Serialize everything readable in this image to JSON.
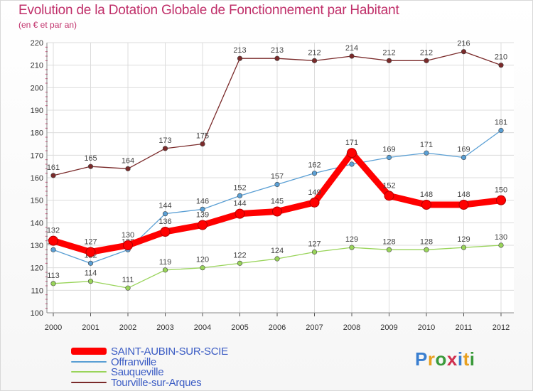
{
  "chart_data": {
    "type": "line",
    "title": "Evolution de la Dotation Globale de Fonctionnement par Habitant",
    "subtitle": "(en € et par an)",
    "categories": [
      "2000",
      "2001",
      "2002",
      "2003",
      "2004",
      "2005",
      "2006",
      "2007",
      "2008",
      "2009",
      "2010",
      "2011",
      "2012"
    ],
    "ylim": [
      100,
      220
    ],
    "yticks": [
      100,
      110,
      120,
      130,
      140,
      150,
      160,
      170,
      180,
      190,
      200,
      210,
      220
    ],
    "grid": true,
    "legend_position": "bottom-left",
    "series": [
      {
        "name": "SAINT-AUBIN-SUR-SCIE",
        "color": "#ff0000",
        "values": [
          132,
          127,
          130,
          136,
          139,
          144,
          145,
          149,
          171,
          152,
          148,
          148,
          150
        ]
      },
      {
        "name": "Offranville",
        "color": "#5a9fd4",
        "values": [
          128,
          122,
          128,
          144,
          146,
          152,
          157,
          162,
          166,
          169,
          171,
          169,
          181
        ]
      },
      {
        "name": "Sauqueville",
        "color": "#99d45a",
        "values": [
          113,
          114,
          111,
          119,
          120,
          122,
          124,
          127,
          129,
          128,
          128,
          129,
          130
        ]
      },
      {
        "name": "Tourville-sur-Arques",
        "color": "#7a2a2a",
        "values": [
          161,
          165,
          164,
          173,
          175,
          213,
          213,
          212,
          214,
          212,
          212,
          216,
          210
        ]
      }
    ]
  },
  "logo": {
    "letters": [
      "P",
      "r",
      "o",
      "x",
      "i",
      "t",
      "i"
    ],
    "colors": [
      "#3a7fd0",
      "#e8a020",
      "#3a9a3a",
      "#d03050",
      "#3a7fd0",
      "#e8a020",
      "#3a9a3a"
    ]
  }
}
